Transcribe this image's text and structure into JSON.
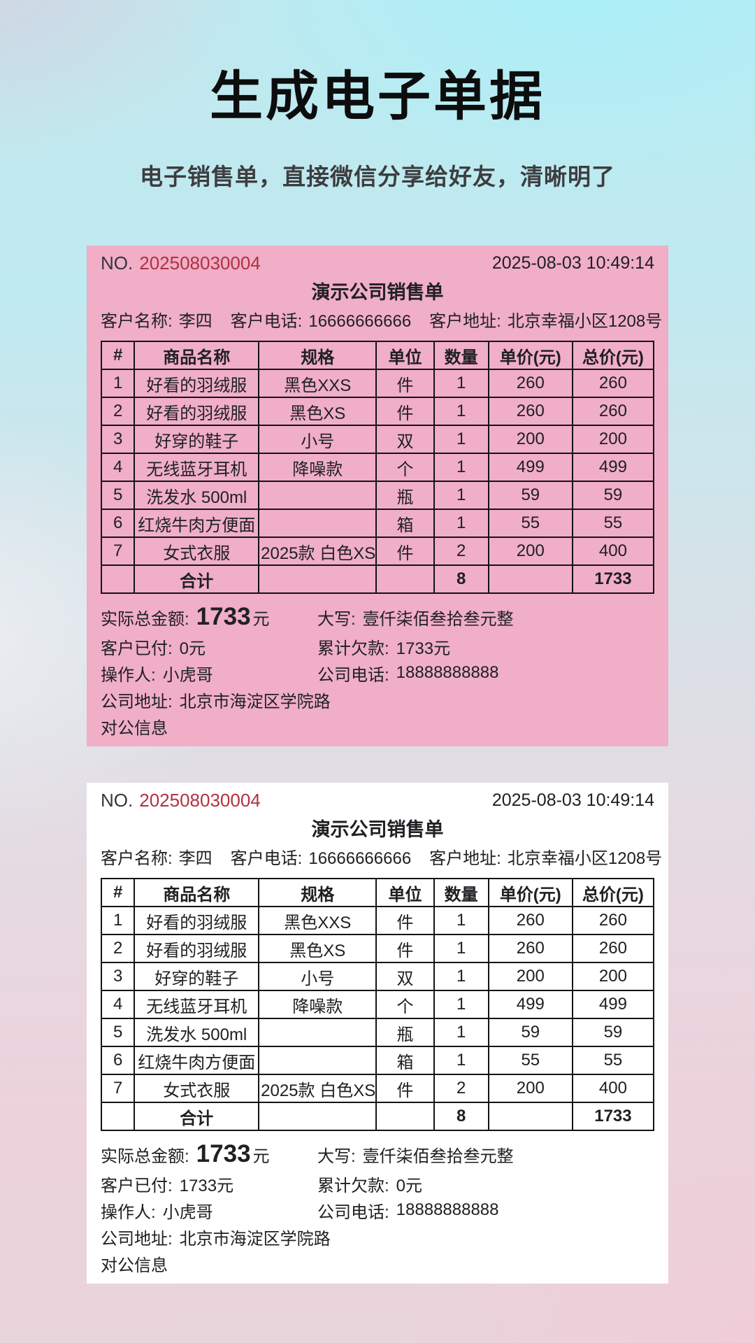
{
  "page": {
    "title": "生成电子单据",
    "subtitle": "电子销售单，直接微信分享给好友，清晰明了"
  },
  "colors": {
    "card_pink": "#f0aec7",
    "card_white": "#ffffff",
    "number_red": "#b2313f",
    "text_dark": "#202024",
    "table_border": "#141414",
    "title_black": "#0d0d0d"
  },
  "receipts": [
    {
      "theme": "pink",
      "no_label": "NO.",
      "no_value": "202508030004",
      "datetime": "2025-08-03 10:49:14",
      "title": "演示公司销售单",
      "customer": {
        "name_label": "客户名称:",
        "name": "李四",
        "phone_label": "客户电话:",
        "phone": "16666666666",
        "address_label": "客户地址:",
        "address": "北京幸福小区1208号"
      },
      "table": {
        "headers": [
          "#",
          "商品名称",
          "规格",
          "单位",
          "数量",
          "单价(元)",
          "总价(元)"
        ],
        "rows": [
          [
            "1",
            "好看的羽绒服",
            "黑色XXS",
            "件",
            "1",
            "260",
            "260"
          ],
          [
            "2",
            "好看的羽绒服",
            "黑色XS",
            "件",
            "1",
            "260",
            "260"
          ],
          [
            "3",
            "好穿的鞋子",
            "小号",
            "双",
            "1",
            "200",
            "200"
          ],
          [
            "4",
            "无线蓝牙耳机",
            "降噪款",
            "个",
            "1",
            "499",
            "499"
          ],
          [
            "5",
            "洗发水 500ml",
            "",
            "瓶",
            "1",
            "59",
            "59"
          ],
          [
            "6",
            "红烧牛肉方便面",
            "",
            "箱",
            "1",
            "55",
            "55"
          ],
          [
            "7",
            "女式衣服",
            "2025款 白色XS",
            "件",
            "2",
            "200",
            "400"
          ]
        ],
        "total_row": {
          "label": "合计",
          "qty": "8",
          "total": "1733"
        }
      },
      "summary": {
        "actual_total_label": "实际总金额:",
        "actual_total": "1733",
        "actual_total_unit": "元",
        "caps_label": "大写:",
        "caps_value": "壹仟柒佰叁拾叁元整",
        "paid_label": "客户已付:",
        "paid_value": "0元",
        "debt_label": "累计欠款:",
        "debt_value": "1733元",
        "operator_label": "操作人:",
        "operator_value": "小虎哥",
        "company_phone_label": "公司电话:",
        "company_phone_value": "18888888888",
        "company_address_label": "公司地址:",
        "company_address_value": "北京市海淀区学院路",
        "public_info": "对公信息"
      }
    },
    {
      "theme": "white",
      "no_label": "NO.",
      "no_value": "202508030004",
      "datetime": "2025-08-03 10:49:14",
      "title": "演示公司销售单",
      "customer": {
        "name_label": "客户名称:",
        "name": "李四",
        "phone_label": "客户电话:",
        "phone": "16666666666",
        "address_label": "客户地址:",
        "address": "北京幸福小区1208号"
      },
      "table": {
        "headers": [
          "#",
          "商品名称",
          "规格",
          "单位",
          "数量",
          "单价(元)",
          "总价(元)"
        ],
        "rows": [
          [
            "1",
            "好看的羽绒服",
            "黑色XXS",
            "件",
            "1",
            "260",
            "260"
          ],
          [
            "2",
            "好看的羽绒服",
            "黑色XS",
            "件",
            "1",
            "260",
            "260"
          ],
          [
            "3",
            "好穿的鞋子",
            "小号",
            "双",
            "1",
            "200",
            "200"
          ],
          [
            "4",
            "无线蓝牙耳机",
            "降噪款",
            "个",
            "1",
            "499",
            "499"
          ],
          [
            "5",
            "洗发水 500ml",
            "",
            "瓶",
            "1",
            "59",
            "59"
          ],
          [
            "6",
            "红烧牛肉方便面",
            "",
            "箱",
            "1",
            "55",
            "55"
          ],
          [
            "7",
            "女式衣服",
            "2025款 白色XS",
            "件",
            "2",
            "200",
            "400"
          ]
        ],
        "total_row": {
          "label": "合计",
          "qty": "8",
          "total": "1733"
        }
      },
      "summary": {
        "actual_total_label": "实际总金额:",
        "actual_total": "1733",
        "actual_total_unit": "元",
        "caps_label": "大写:",
        "caps_value": "壹仟柒佰叁拾叁元整",
        "paid_label": "客户已付:",
        "paid_value": "1733元",
        "debt_label": "累计欠款:",
        "debt_value": "0元",
        "operator_label": "操作人:",
        "operator_value": "小虎哥",
        "company_phone_label": "公司电话:",
        "company_phone_value": "18888888888",
        "company_address_label": "公司地址:",
        "company_address_value": "北京市海淀区学院路",
        "public_info": "对公信息"
      }
    }
  ]
}
